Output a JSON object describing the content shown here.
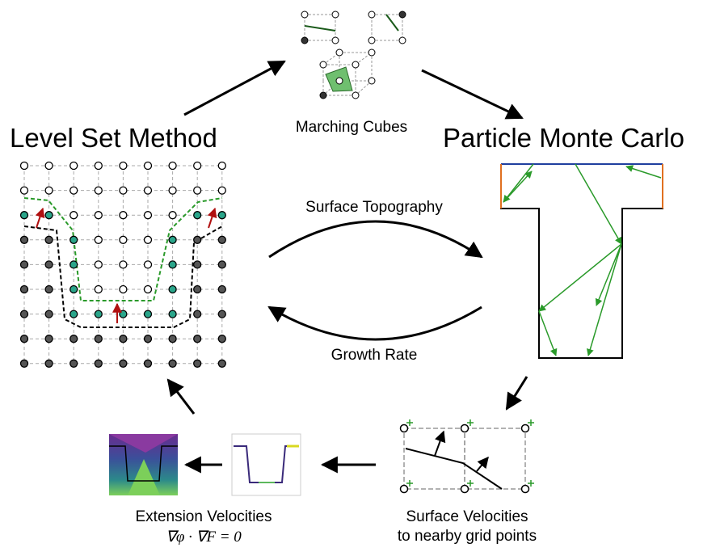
{
  "top": {
    "label": "Marching Cubes"
  },
  "left": {
    "title": "Level Set Method"
  },
  "right": {
    "title": "Particle Monte Carlo"
  },
  "arrows": {
    "forward": "Surface Topography",
    "backward": "Growth Rate"
  },
  "bottom_left": {
    "label": "Extension Velocities",
    "equation": "∇φ · ∇F = 0"
  },
  "bottom_right": {
    "label_lines": [
      "Surface Velocities",
      "to nearby grid points"
    ]
  }
}
